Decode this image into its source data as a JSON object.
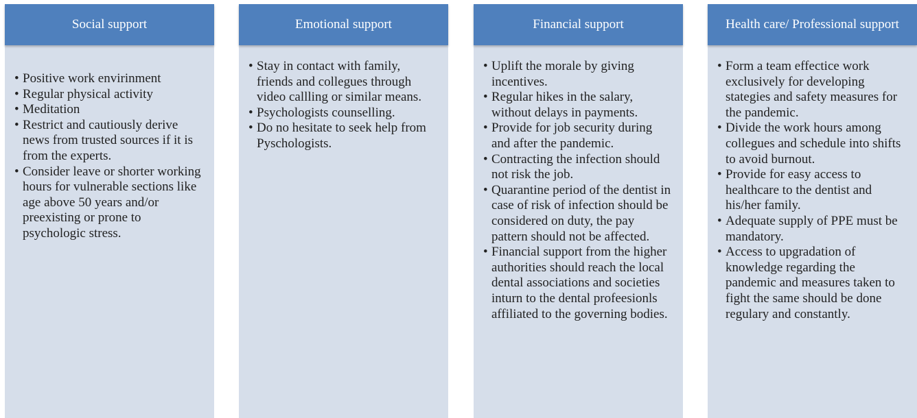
{
  "columns": [
    {
      "title": "Social support",
      "items": [
        "Positive work envirinment",
        "Regular physical activity",
        "Meditation",
        "Restrict and cautiously derive news from trusted sources if it is from the experts.",
        "Consider leave or shorter working hours for vulnerable sections like age above 50 years and/or preexisting or prone to psychologic stress."
      ]
    },
    {
      "title": "Emotional support",
      "items": [
        "Stay in contact with family, friends and collegues through video callling or similar means.",
        "Psychologists counselling.",
        "Do no hesitate to seek help from Pyschologists."
      ]
    },
    {
      "title": "Financial support",
      "items": [
        "Uplift the morale by giving incentives.",
        "Regular hikes in the salary, without delays in payments.",
        "Provide for job security during and after the pandemic.",
        "Contracting the infection should not risk the job.",
        "Quarantine period of the dentist in case of risk of infection should be considered on duty, the pay pattern should not be affected.",
        "Financial support from the higher authorities should reach the local dental associations and societies inturn to the dental profeesionls affiliated to the governing bodies."
      ]
    },
    {
      "title": "Health care/ Professional support",
      "items": [
        "Form a team effectice work exclusively for developing stategies and safety measures for the pandemic.",
        "Divide the work hours among collegues and schedule into shifts to avoid burnout.",
        "Provide for easy access to healthcare to the dentist and his/her family.",
        "Adequate supply of PPE must be mandatory.",
        "Access to upgradation of knowledge regarding the pandemic and measures taken to fight the same should be done regulary and constantly."
      ]
    }
  ]
}
